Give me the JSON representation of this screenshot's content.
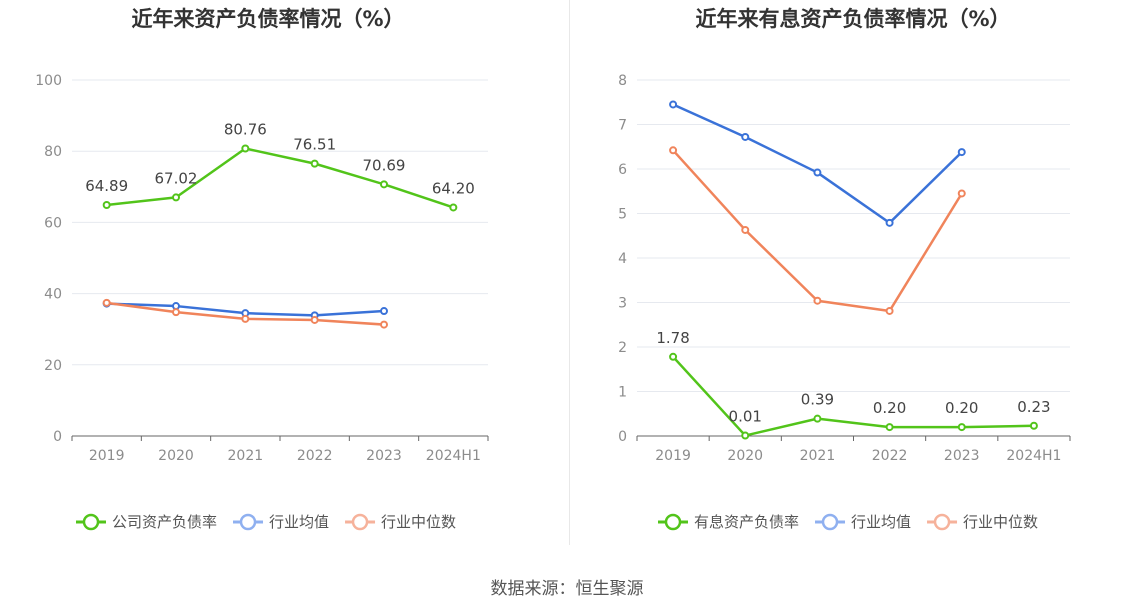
{
  "source_text": "数据来源：恒生聚源",
  "colors": {
    "company": "#52c41a",
    "industry_avg": "#3a72d8",
    "industry_median": "#f0845b",
    "legend_avg": "#8fb0f0",
    "legend_median": "#f6b29b",
    "grid": "#e6e9ef",
    "axis": "#666666",
    "tick_text": "#8c8c8c",
    "label_text": "#444444",
    "title_text": "#333333"
  },
  "chart_data": [
    {
      "type": "line",
      "title": "近年来资产负债率情况（%）",
      "categories": [
        "2019",
        "2020",
        "2021",
        "2022",
        "2023",
        "2024H1"
      ],
      "ylim": [
        0,
        100
      ],
      "yticks": [
        0,
        20,
        40,
        60,
        80,
        100
      ],
      "grid": true,
      "legend_position": "bottom",
      "series": [
        {
          "name": "公司资产负债率",
          "key": "company",
          "values": [
            64.89,
            67.02,
            80.76,
            76.51,
            70.69,
            64.2
          ],
          "labels": [
            "64.89",
            "67.02",
            "80.76",
            "76.51",
            "70.69",
            "64.20"
          ]
        },
        {
          "name": "行业均值",
          "key": "industry_avg",
          "values": [
            37.2,
            36.5,
            34.5,
            33.9,
            35.1,
            null
          ]
        },
        {
          "name": "行业中位数",
          "key": "industry_median",
          "values": [
            37.4,
            34.8,
            32.9,
            32.6,
            31.3,
            null
          ]
        }
      ]
    },
    {
      "type": "line",
      "title": "近年来有息资产负债率情况（%）",
      "categories": [
        "2019",
        "2020",
        "2021",
        "2022",
        "2023",
        "2024H1"
      ],
      "ylim": [
        0,
        8
      ],
      "yticks": [
        0,
        1,
        2,
        3,
        4,
        5,
        6,
        7,
        8
      ],
      "grid": true,
      "legend_position": "bottom",
      "series": [
        {
          "name": "有息资产负债率",
          "key": "company",
          "values": [
            1.78,
            0.01,
            0.39,
            0.2,
            0.2,
            0.23
          ],
          "labels": [
            "1.78",
            "0.01",
            "0.39",
            "0.20",
            "0.20",
            "0.23"
          ]
        },
        {
          "name": "行业均值",
          "key": "industry_avg",
          "values": [
            7.45,
            6.72,
            5.92,
            4.79,
            6.38,
            null
          ]
        },
        {
          "name": "行业中位数",
          "key": "industry_median",
          "values": [
            6.42,
            4.63,
            3.04,
            2.81,
            5.45,
            null
          ]
        }
      ]
    }
  ]
}
